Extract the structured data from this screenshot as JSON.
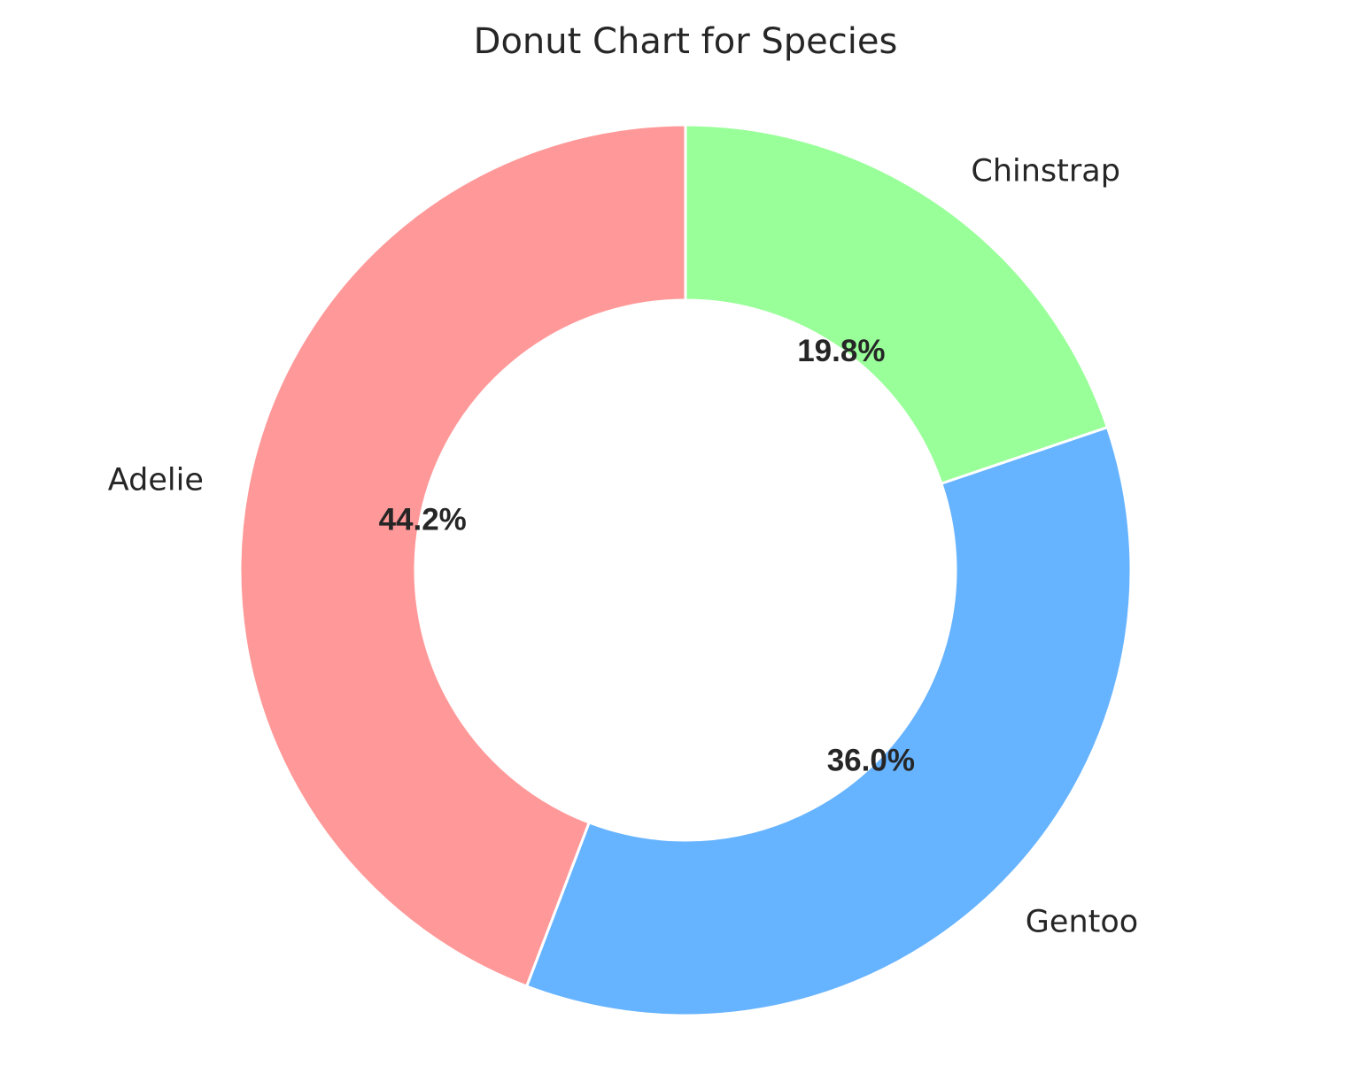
{
  "chart_data": {
    "type": "pie",
    "title": "Donut Chart for Species",
    "categories": [
      "Adelie",
      "Gentoo",
      "Chinstrap"
    ],
    "values": [
      44.2,
      36.0,
      19.8
    ],
    "value_labels": [
      "44.2%",
      "36.0%",
      "19.8%"
    ],
    "colors": [
      "#ff9999",
      "#66b3ff",
      "#99ff99"
    ],
    "donut": true,
    "start_angle_deg": 90,
    "direction": "counterclockwise",
    "legend": "none"
  }
}
